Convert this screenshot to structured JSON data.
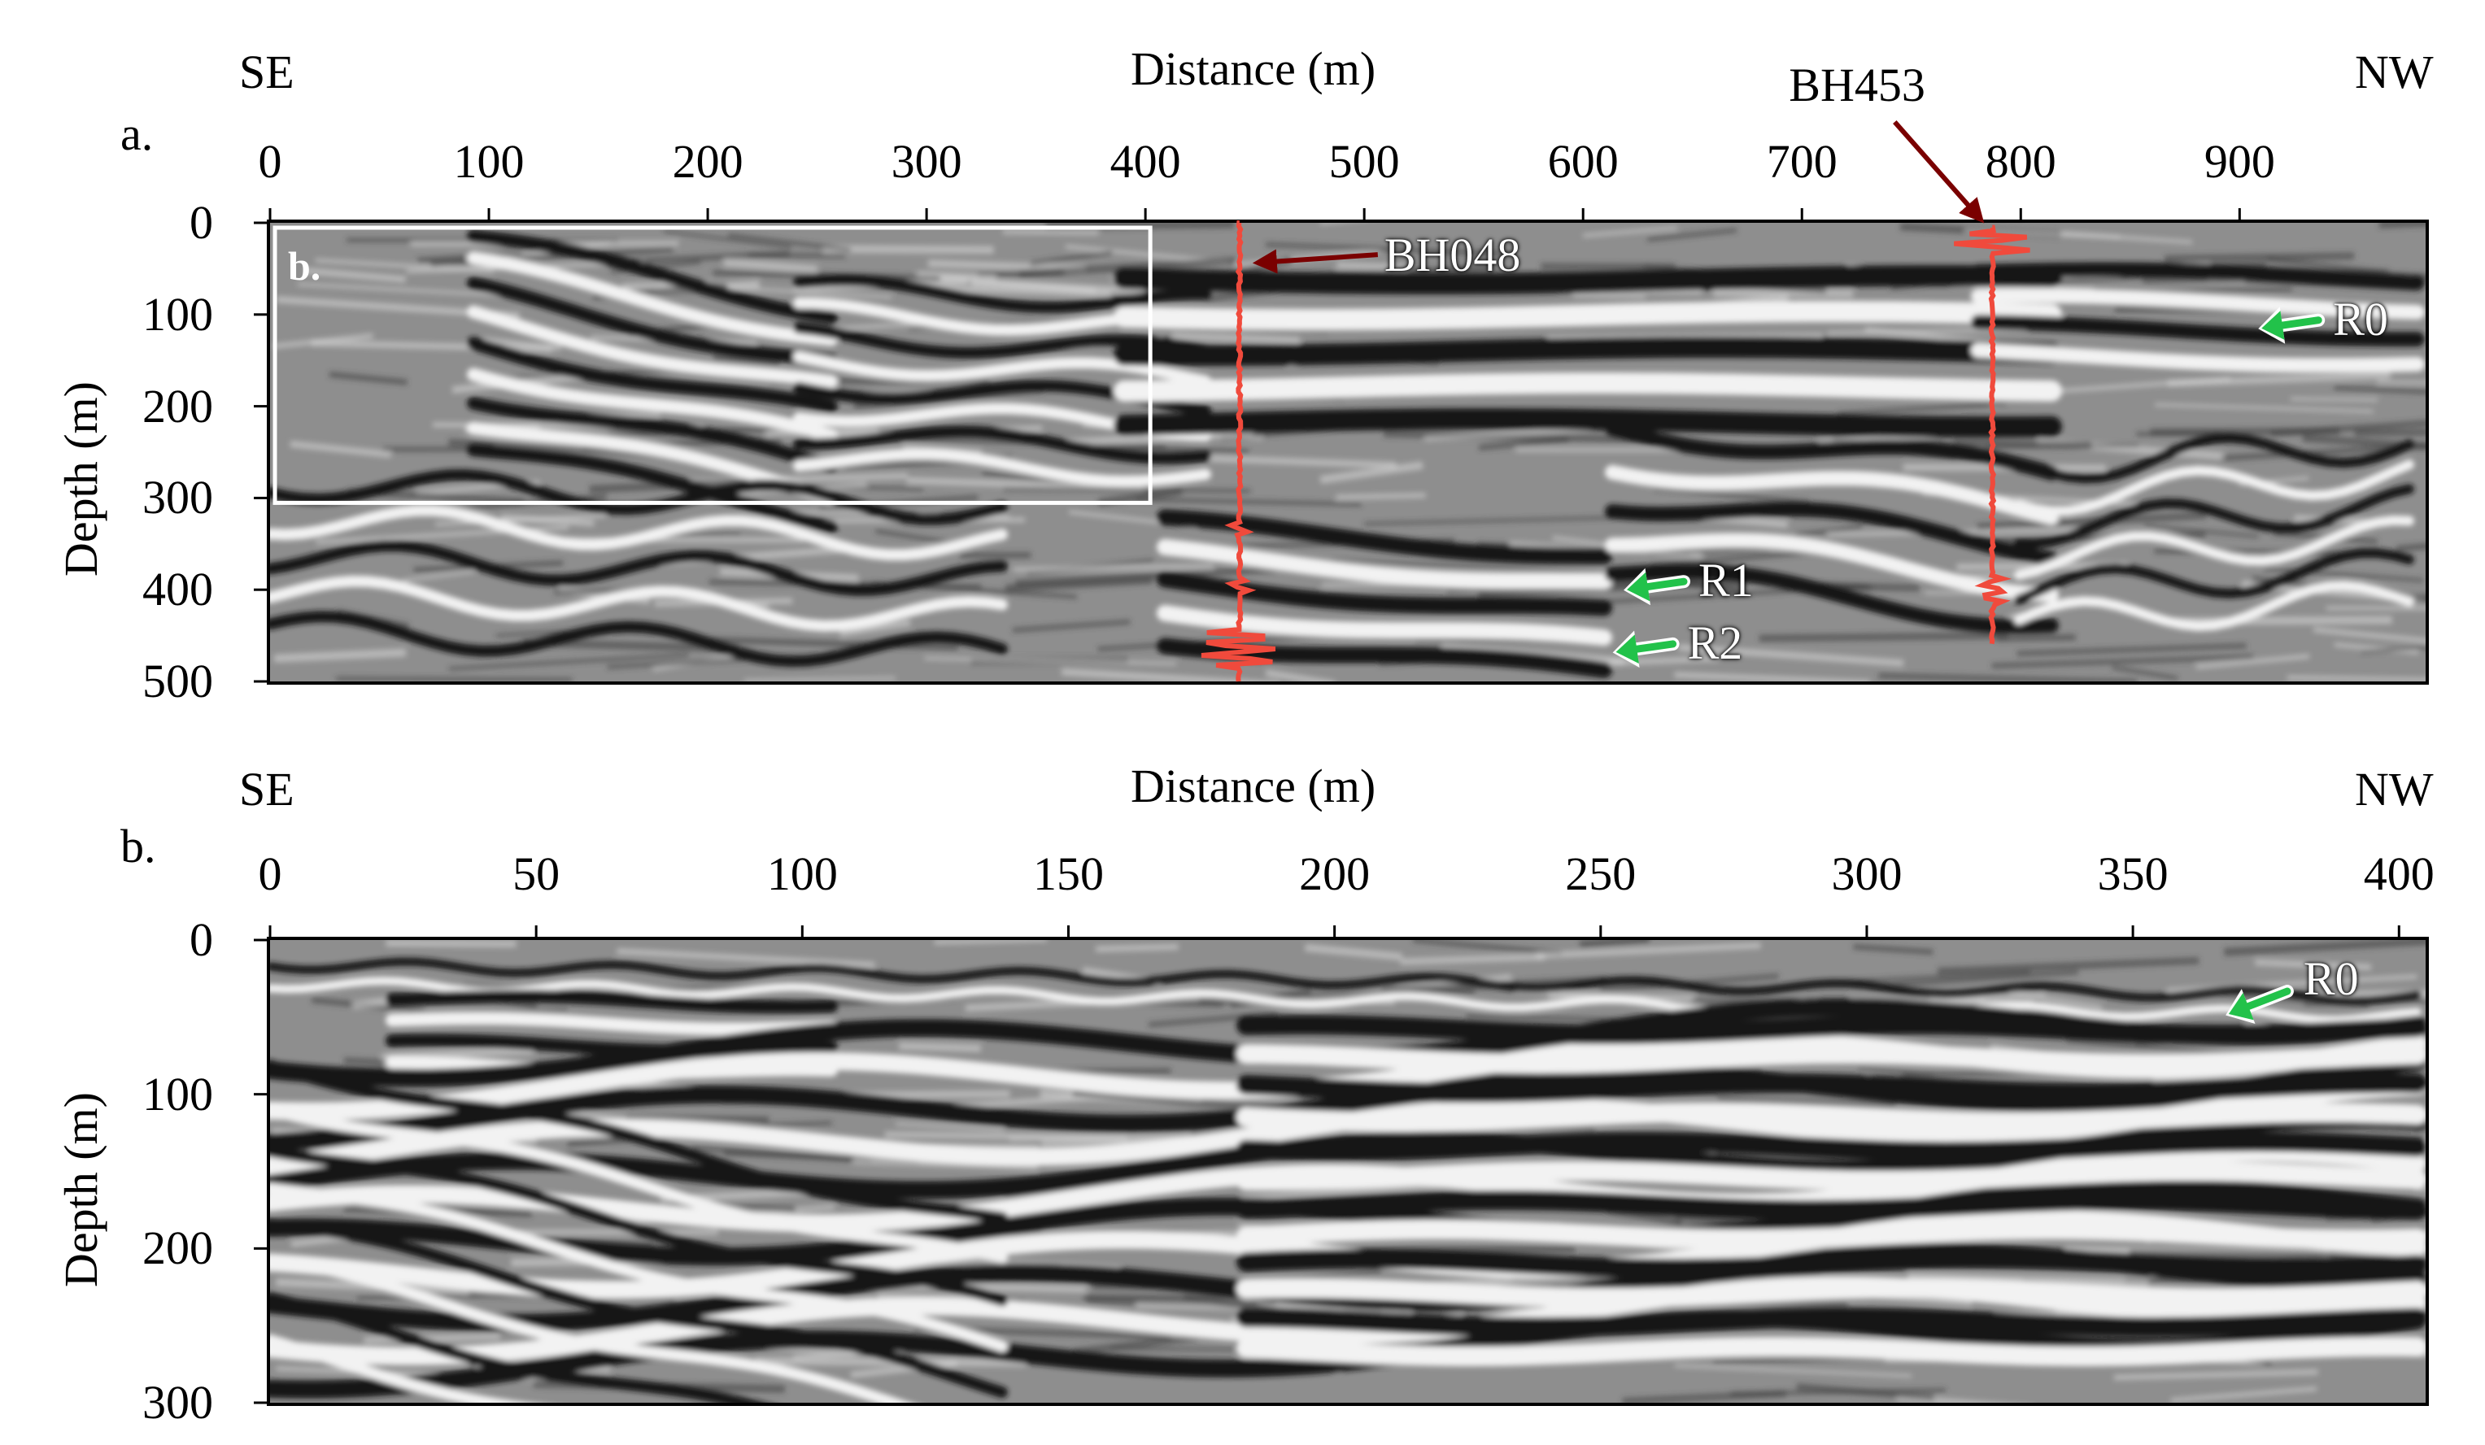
{
  "panels": [
    {
      "letter": "a.",
      "left_dir": "SE",
      "right_dir": "NW",
      "xlabel": "Distance (m)",
      "ylabel": "Depth (m)",
      "x_ticks": [
        "0",
        "100",
        "200",
        "300",
        "400",
        "500",
        "600",
        "700",
        "800",
        "900"
      ],
      "y_ticks": [
        "0",
        "100",
        "200",
        "300",
        "400",
        "500"
      ],
      "x_range": [
        0,
        985
      ],
      "y_range": [
        0,
        500
      ],
      "inset_label": "b.",
      "inset_box": {
        "x": [
          0,
          400
        ],
        "y": [
          0,
          300
        ]
      },
      "boreholes": [
        {
          "name": "BH048",
          "distance": 443
        },
        {
          "name": "BH453",
          "distance": 787
        }
      ],
      "reflectors": [
        {
          "name": "R0",
          "distance": 910,
          "depth": 115
        },
        {
          "name": "R1",
          "distance": 620,
          "depth": 400
        },
        {
          "name": "R2",
          "distance": 615,
          "depth": 468
        }
      ]
    },
    {
      "letter": "b.",
      "left_dir": "SE",
      "right_dir": "NW",
      "xlabel": "Distance (m)",
      "ylabel": "Depth (m)",
      "x_ticks": [
        "0",
        "50",
        "100",
        "150",
        "200",
        "250",
        "300",
        "350",
        "400"
      ],
      "y_ticks": [
        "0",
        "100",
        "200",
        "300"
      ],
      "x_range": [
        0,
        405
      ],
      "y_range": [
        0,
        300
      ],
      "reflectors": [
        {
          "name": "R0",
          "distance": 368,
          "depth": 48
        }
      ]
    }
  ],
  "colors": {
    "borehole_log": "#f04a3c",
    "borehole_pointer": "#7a0000",
    "reflector_arrow": "#22c24a",
    "inset_box": "#ffffff"
  }
}
